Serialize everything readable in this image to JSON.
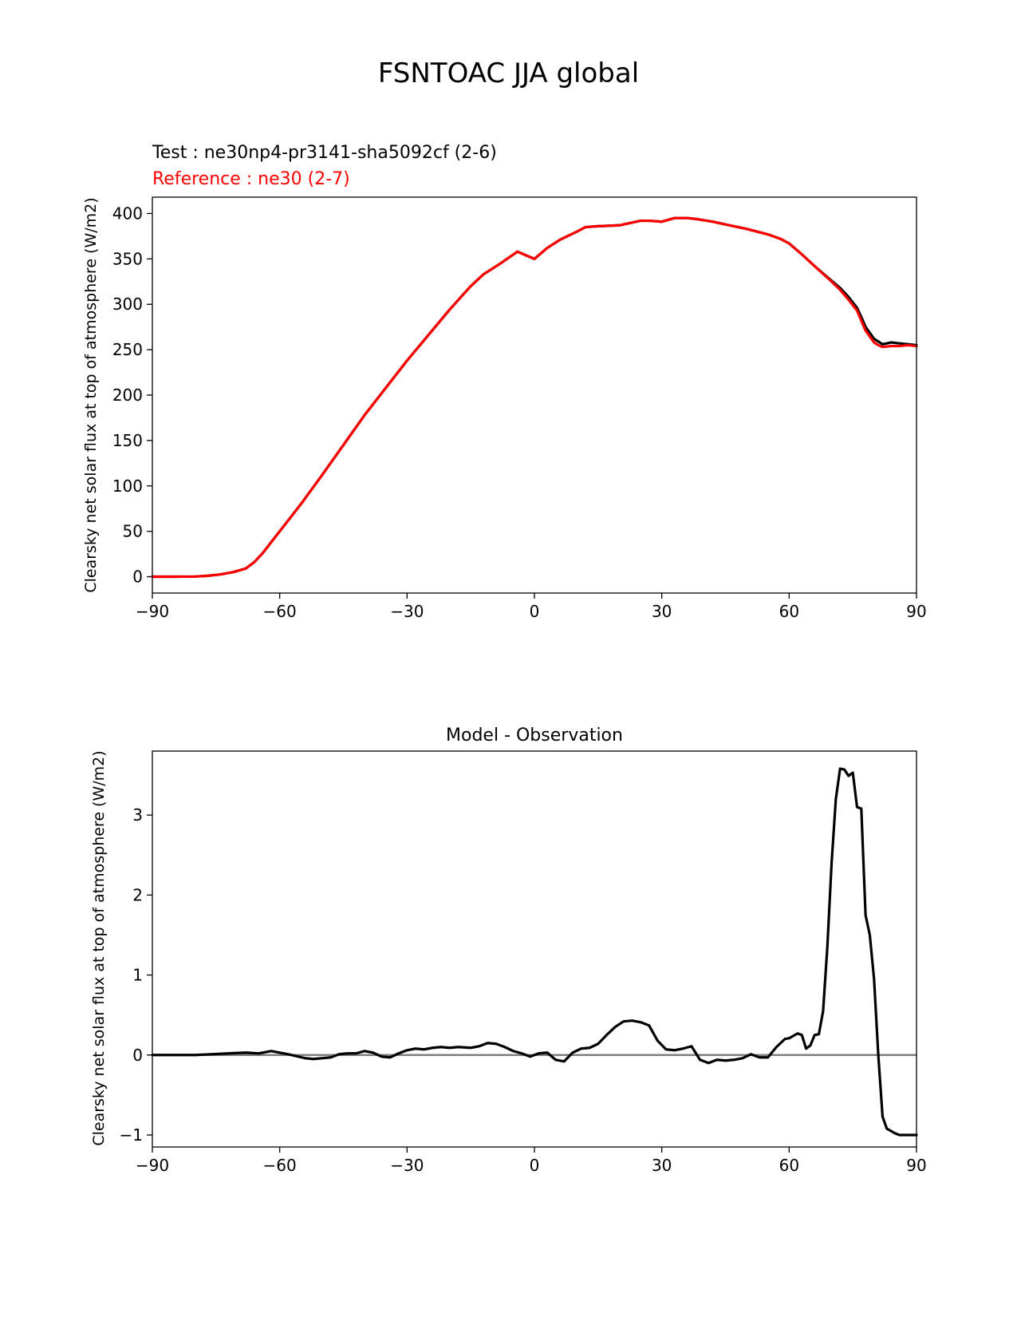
{
  "suptitle": "FSNTOAC JJA global",
  "chart_data": [
    {
      "type": "line",
      "title_test": "Test : ne30np4-pr3141-sha5092cf (2-6)",
      "title_ref": "Reference : ne30 (2-7)",
      "xlabel": "",
      "ylabel": "Clearsky net solar flux at top of atmosphere (W/m2)",
      "xlim": [
        -90,
        90
      ],
      "ylim": [
        -18,
        418
      ],
      "xticks": [
        -90,
        -60,
        -30,
        0,
        30,
        60,
        90
      ],
      "xticklabels": [
        "−90",
        "−60",
        "−30",
        "0",
        "30",
        "60",
        "90"
      ],
      "yticks": [
        0,
        50,
        100,
        150,
        200,
        250,
        300,
        350,
        400
      ],
      "yticklabels": [
        "0",
        "50",
        "100",
        "150",
        "200",
        "250",
        "300",
        "350",
        "400"
      ],
      "series": [
        {
          "name": "Test",
          "color": "#000000",
          "x": [
            -90,
            -85,
            -80,
            -77,
            -74,
            -71,
            -68,
            -66,
            -64,
            -62,
            -60,
            -55,
            -50,
            -45,
            -40,
            -35,
            -30,
            -25,
            -20,
            -15,
            -12,
            -8,
            -4,
            0,
            3,
            6,
            10,
            12,
            15,
            20,
            25,
            27,
            30,
            33,
            36,
            38,
            42,
            45,
            50,
            55,
            58,
            60,
            63,
            66,
            70,
            72,
            74,
            76,
            77,
            78,
            80,
            81,
            82,
            84,
            86,
            88,
            90
          ],
          "y": [
            0,
            0,
            0.2,
            1,
            2.5,
            5,
            9,
            16,
            26,
            38,
            50,
            80,
            112,
            145,
            178,
            208,
            238,
            266,
            294,
            320,
            333,
            345,
            358,
            350,
            362,
            371,
            380,
            385,
            386,
            387,
            392,
            392,
            391,
            395,
            395,
            394,
            391,
            388,
            383,
            377,
            372,
            367,
            355,
            342,
            326,
            318,
            308,
            296,
            286,
            275,
            262,
            259,
            256,
            258,
            257,
            256,
            255
          ]
        },
        {
          "name": "Reference",
          "color": "#ff0000",
          "x": [
            -90,
            -85,
            -80,
            -77,
            -74,
            -71,
            -68,
            -66,
            -64,
            -62,
            -60,
            -55,
            -50,
            -45,
            -40,
            -35,
            -30,
            -25,
            -20,
            -15,
            -12,
            -8,
            -4,
            0,
            3,
            6,
            10,
            12,
            15,
            20,
            25,
            27,
            30,
            33,
            36,
            38,
            42,
            45,
            50,
            55,
            58,
            60,
            63,
            66,
            70,
            72,
            74,
            76,
            77,
            78,
            80,
            81,
            82,
            84,
            86,
            88,
            90
          ],
          "y": [
            0,
            0,
            0.2,
            1,
            2.5,
            5,
            9,
            16,
            26,
            38,
            50,
            80,
            112,
            145,
            178,
            208,
            238,
            266,
            294,
            320,
            333,
            345,
            358,
            350,
            362,
            371,
            380,
            385,
            386,
            387,
            392,
            392,
            391,
            395,
            395,
            394,
            391,
            388,
            383,
            377,
            372,
            367,
            355,
            342,
            325,
            316,
            305,
            293,
            282,
            271,
            258,
            255,
            253,
            254,
            254,
            255,
            254
          ]
        }
      ]
    },
    {
      "type": "line",
      "title": "Model - Observation",
      "xlabel": "",
      "ylabel": "Clearsky net solar flux at top of atmosphere (W/m2)",
      "xlim": [
        -90,
        90
      ],
      "ylim": [
        -1.15,
        3.8
      ],
      "xticks": [
        -90,
        -60,
        -30,
        0,
        30,
        60,
        90
      ],
      "xticklabels": [
        "−90",
        "−60",
        "−30",
        "0",
        "30",
        "60",
        "90"
      ],
      "yticks": [
        -1,
        0,
        1,
        2,
        3
      ],
      "yticklabels": [
        "−1",
        "0",
        "1",
        "2",
        "3"
      ],
      "zero_line_color": "#808080",
      "series": [
        {
          "name": "Model - Observation",
          "color": "#000000",
          "x": [
            -90,
            -80,
            -72,
            -68,
            -65,
            -62,
            -58,
            -54,
            -52,
            -50,
            -48,
            -46,
            -44,
            -42,
            -40,
            -38,
            -36,
            -34,
            -32,
            -30,
            -28,
            -26,
            -24,
            -22,
            -20,
            -18,
            -15,
            -13,
            -11,
            -9,
            -7,
            -5,
            -3,
            -1,
            1,
            3,
            5,
            7,
            9,
            11,
            13,
            15,
            17,
            19,
            21,
            23,
            25,
            27,
            29,
            31,
            33,
            35,
            37,
            39,
            41,
            43,
            45,
            47,
            49,
            51,
            53,
            55,
            57,
            59,
            60,
            62,
            63,
            64,
            65,
            66,
            67,
            68,
            69,
            70,
            71,
            72,
            73,
            74,
            75,
            76,
            77,
            78,
            79,
            80,
            81,
            82,
            83,
            84,
            85,
            86,
            87,
            88,
            89,
            90
          ],
          "y": [
            0,
            0,
            0.02,
            0.03,
            0.02,
            0.05,
            0.01,
            -0.04,
            -0.05,
            -0.04,
            -0.03,
            0.01,
            0.02,
            0.02,
            0.05,
            0.03,
            -0.02,
            -0.03,
            0.02,
            0.06,
            0.08,
            0.07,
            0.09,
            0.1,
            0.09,
            0.1,
            0.09,
            0.11,
            0.15,
            0.14,
            0.1,
            0.05,
            0.02,
            -0.02,
            0.02,
            0.03,
            -0.06,
            -0.08,
            0.03,
            0.08,
            0.09,
            0.14,
            0.25,
            0.35,
            0.42,
            0.43,
            0.41,
            0.37,
            0.18,
            0.07,
            0.06,
            0.08,
            0.11,
            -0.06,
            -0.1,
            -0.06,
            -0.07,
            -0.06,
            -0.04,
            0.01,
            -0.03,
            -0.03,
            0.1,
            0.2,
            0.21,
            0.27,
            0.25,
            0.08,
            0.12,
            0.25,
            0.26,
            0.55,
            1.35,
            2.4,
            3.2,
            3.58,
            3.57,
            3.49,
            3.53,
            3.1,
            3.08,
            1.75,
            1.5,
            0.95,
            0.0,
            -0.77,
            -0.92,
            -0.95,
            -0.98,
            -1.0,
            -1.0,
            -1.0,
            -1.0,
            -1.0
          ]
        }
      ]
    }
  ]
}
